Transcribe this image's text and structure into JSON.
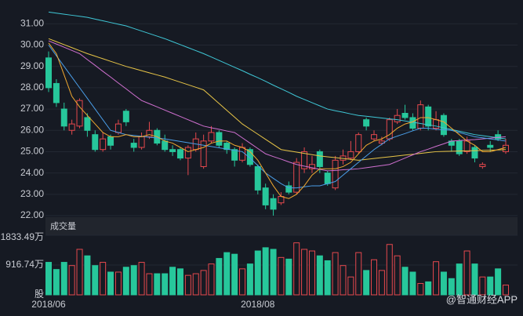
{
  "chart_data": {
    "type": "candlestick",
    "categories": [
      "2018/06",
      null,
      null,
      null,
      null,
      null,
      null,
      null,
      null,
      null,
      null,
      null,
      null,
      null,
      null,
      null,
      null,
      null,
      null,
      null,
      null,
      null,
      null,
      null,
      null,
      null,
      null,
      "2018/08",
      null,
      null,
      null,
      null,
      null,
      null,
      null,
      null,
      null,
      null,
      null,
      null,
      null,
      null,
      null,
      null,
      null,
      null,
      null,
      null,
      null,
      null,
      null,
      null,
      null,
      null,
      null,
      null,
      null,
      null,
      null,
      null
    ],
    "candles": {
      "open": [
        29.4,
        28.2,
        27.0,
        26.0,
        26.2,
        26.6,
        25.8,
        25.1,
        25.7,
        25.9,
        26.9,
        25.4,
        25.2,
        25.7,
        26.0,
        25.5,
        25.1,
        25.1,
        24.7,
        25.1,
        24.3,
        25.5,
        25.9,
        25.4,
        25.1,
        24.6,
        25.1,
        24.3,
        23.3,
        22.8,
        22.6,
        23.4,
        23.1,
        24.2,
        24.2,
        25.0,
        24.0,
        23.3,
        24.6,
        24.7,
        25.0,
        26.5,
        25.6,
        25.4,
        25.6,
        26.4,
        26.8,
        26.6,
        26.1,
        27.1,
        26.1,
        26.7,
        25.5,
        25.5,
        25.0,
        25.2,
        24.3,
        25.3,
        25.8,
        25.0
      ],
      "close": [
        28.0,
        27.3,
        26.2,
        26.3,
        27.4,
        26.0,
        25.1,
        25.6,
        25.3,
        26.3,
        26.4,
        25.2,
        25.7,
        26.0,
        25.4,
        25.1,
        25.0,
        24.7,
        25.2,
        25.6,
        25.5,
        25.9,
        25.3,
        25.1,
        24.6,
        25.2,
        24.4,
        23.2,
        22.5,
        22.3,
        22.9,
        23.1,
        24.5,
        25.0,
        24.4,
        24.3,
        23.5,
        24.6,
        24.8,
        25.0,
        25.8,
        26.2,
        25.8,
        25.5,
        26.5,
        26.7,
        26.6,
        26.1,
        27.2,
        26.2,
        26.5,
        25.8,
        25.3,
        24.9,
        25.5,
        24.7,
        24.4,
        25.2,
        25.6,
        25.3
      ],
      "high": [
        29.7,
        28.4,
        27.3,
        26.5,
        27.5,
        26.8,
        26.0,
        25.9,
        25.8,
        26.5,
        27.0,
        25.6,
        25.9,
        26.4,
        26.1,
        25.8,
        25.3,
        25.2,
        25.3,
        25.9,
        25.8,
        26.2,
        26.0,
        25.5,
        25.2,
        25.4,
        25.2,
        24.4,
        23.5,
        23.0,
        23.1,
        23.6,
        24.7,
        25.2,
        24.8,
        25.1,
        24.1,
        24.8,
        25.1,
        25.5,
        25.9,
        26.6,
        26.0,
        25.7,
        26.6,
        27.0,
        27.2,
        26.8,
        27.4,
        27.2,
        26.9,
        26.8,
        25.6,
        25.6,
        25.7,
        25.3,
        24.5,
        25.5,
        26.0,
        25.6
      ],
      "low": [
        27.8,
        27.1,
        26.0,
        25.8,
        26.1,
        25.7,
        25.0,
        25.0,
        25.1,
        25.8,
        26.2,
        25.0,
        25.1,
        25.6,
        25.3,
        25.0,
        24.8,
        24.6,
        23.9,
        25.0,
        24.2,
        25.4,
        25.2,
        24.9,
        24.3,
        24.5,
        24.3,
        23.0,
        22.3,
        22.0,
        22.5,
        23.0,
        23.0,
        24.0,
        24.0,
        24.0,
        23.4,
        23.2,
        24.4,
        24.6,
        24.9,
        26.0,
        25.5,
        25.3,
        25.5,
        26.3,
        26.5,
        26.0,
        26.0,
        26.0,
        26.0,
        25.7,
        25.0,
        24.8,
        24.9,
        24.5,
        24.2,
        25.0,
        25.5,
        24.9
      ]
    },
    "up_color": "#e5484d",
    "down_color": "#27c79b",
    "series": [
      {
        "color": "#3fc7d6",
        "values": [
          31.55,
          31.5,
          31.45,
          31.4,
          31.35,
          31.3,
          31.22,
          31.14,
          31.06,
          30.98,
          30.9,
          30.78,
          30.66,
          30.54,
          30.42,
          30.3,
          30.16,
          30.02,
          29.88,
          29.74,
          29.6,
          29.44,
          29.28,
          29.12,
          28.96,
          28.8,
          28.63,
          28.47,
          28.3,
          28.12,
          27.95,
          27.78,
          27.6,
          27.45,
          27.3,
          27.15,
          27.0,
          26.92,
          26.85,
          26.77,
          26.7,
          26.66,
          26.62,
          26.58,
          26.54,
          26.5,
          26.44,
          26.38,
          26.32,
          26.26,
          26.2,
          26.12,
          26.04,
          25.96,
          25.88,
          25.8,
          25.75,
          25.7,
          25.65,
          25.6
        ]
      },
      {
        "color": "#e8c547",
        "values": [
          30.3,
          30.16,
          30.02,
          29.88,
          29.74,
          29.6,
          29.48,
          29.36,
          29.24,
          29.12,
          29.0,
          28.9,
          28.8,
          28.7,
          28.6,
          28.5,
          28.38,
          28.26,
          28.14,
          28.02,
          27.9,
          27.58,
          27.26,
          26.94,
          26.62,
          26.3,
          26.06,
          25.82,
          25.58,
          25.34,
          25.1,
          25.04,
          24.98,
          24.92,
          24.86,
          24.8,
          24.76,
          24.72,
          24.68,
          24.64,
          24.6,
          24.64,
          24.68,
          24.72,
          24.76,
          24.8,
          24.84,
          24.88,
          24.92,
          24.96,
          25.0,
          25.01,
          25.02,
          25.03,
          25.04,
          25.05,
          25.06,
          25.07,
          25.08,
          25.1
        ]
      },
      {
        "color": "#d070d0",
        "values": [
          30.2,
          30.05,
          29.9,
          29.75,
          29.6,
          29.32,
          29.05,
          28.77,
          28.5,
          28.22,
          27.95,
          27.67,
          27.4,
          27.25,
          27.1,
          26.95,
          26.8,
          26.65,
          26.5,
          26.35,
          26.2,
          26.12,
          26.05,
          25.97,
          25.9,
          25.65,
          25.4,
          25.15,
          24.9,
          24.77,
          24.65,
          24.52,
          24.4,
          24.32,
          24.25,
          24.17,
          24.1,
          24.12,
          24.15,
          24.17,
          24.2,
          24.25,
          24.3,
          24.35,
          24.4,
          24.55,
          24.7,
          24.85,
          25.0,
          25.12,
          25.25,
          25.37,
          25.5,
          25.52,
          25.55,
          25.57,
          25.6,
          25.63,
          25.67,
          25.7
        ]
      },
      {
        "color": "#4a9ee8",
        "values": [
          30.0,
          29.5,
          29.0,
          28.5,
          28.0,
          27.5,
          27.0,
          26.5,
          26.0,
          25.9,
          25.8,
          25.76,
          25.72,
          25.68,
          25.64,
          25.6,
          25.54,
          25.48,
          25.42,
          25.36,
          25.3,
          25.24,
          25.18,
          25.12,
          25.06,
          25.0,
          24.7,
          24.35,
          24.0,
          23.75,
          23.5,
          23.3,
          23.3,
          23.35,
          23.4,
          23.4,
          23.5,
          23.6,
          23.9,
          24.2,
          24.5,
          24.8,
          25.1,
          25.35,
          25.6,
          25.73,
          25.85,
          25.98,
          26.1,
          26.1,
          26.05,
          26.03,
          26.0,
          25.9,
          25.8,
          25.7,
          25.65,
          25.6,
          25.55,
          25.5
        ]
      },
      {
        "color": "#f0a830",
        "values": [
          30.1,
          29.6,
          28.6,
          27.6,
          27.1,
          26.7,
          26.3,
          25.9,
          25.7,
          25.7,
          25.8,
          25.7,
          25.7,
          25.8,
          25.7,
          25.5,
          25.4,
          25.2,
          25.0,
          25.1,
          25.2,
          25.4,
          25.5,
          25.5,
          25.3,
          25.2,
          25.0,
          24.6,
          24.0,
          23.4,
          22.9,
          22.8,
          23.0,
          23.4,
          23.9,
          24.2,
          24.2,
          24.2,
          24.3,
          24.5,
          24.9,
          25.3,
          25.5,
          25.6,
          25.8,
          26.1,
          26.3,
          26.4,
          26.6,
          26.6,
          26.5,
          26.4,
          26.1,
          25.8,
          25.5,
          25.3,
          25.0,
          25.0,
          25.1,
          25.2
        ]
      }
    ],
    "ylim": [
      22,
      31.6
    ],
    "yticks": [
      {
        "value": 22,
        "label": "22.00"
      },
      {
        "value": 23,
        "label": "23.00"
      },
      {
        "value": 24,
        "label": "24.00"
      },
      {
        "value": 25,
        "label": "25.00"
      },
      {
        "value": 26,
        "label": "26.00"
      },
      {
        "value": 27,
        "label": "27.00"
      },
      {
        "value": 28,
        "label": "28.00"
      },
      {
        "value": 29,
        "label": "29.00"
      },
      {
        "value": 30,
        "label": "30.00"
      },
      {
        "value": 31,
        "label": "31.00"
      }
    ],
    "volume_title": "成交量",
    "volume": [
      1000,
      780,
      1000,
      900,
      1400,
      1200,
      900,
      1000,
      700,
      700,
      850,
      900,
      1000,
      650,
      650,
      650,
      850,
      800,
      600,
      650,
      750,
      950,
      1120,
      1300,
      1250,
      800,
      950,
      1350,
      1450,
      1400,
      1150,
      1100,
      1600,
      1400,
      1350,
      1200,
      1050,
      1300,
      900,
      550,
      1300,
      750,
      1080,
      750,
      1550,
      1200,
      850,
      700,
      350,
      400,
      1020,
      700,
      500,
      950,
      1350,
      950,
      550,
      550,
      800,
      300
    ],
    "vlim": [
      0,
      1833.49
    ],
    "vticks": [
      {
        "value": 1833.49,
        "label": "1833.49万"
      },
      {
        "value": 916.74,
        "label": "916.74万"
      },
      {
        "value": 0,
        "label": "股"
      }
    ],
    "grid": true,
    "watermark": "@智通财经APP"
  }
}
